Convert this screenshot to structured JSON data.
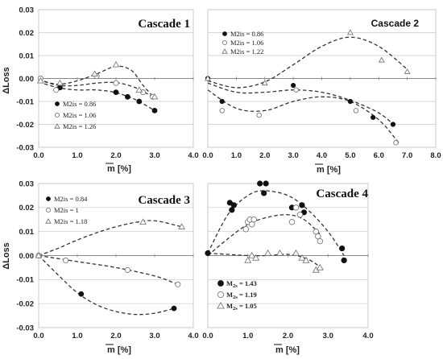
{
  "chart_data": [
    {
      "type": "scatter",
      "title": "Cascade 1",
      "ylabel": "ΔLoss",
      "xlabel": "m̄ [%]",
      "xlim": [
        0.0,
        4.0
      ],
      "ylim": [
        -0.03,
        0.03
      ],
      "xticks": [
        "0.0",
        "1.0",
        "2.0",
        "3.0",
        "4.0"
      ],
      "yticks": [
        "0.03",
        "0.02",
        "0.01",
        "0.00",
        "-0.01",
        "-0.02",
        "-0.03"
      ],
      "grid": "horizontal",
      "legend": "bottom-left",
      "series": [
        {
          "name": "M2is = 0.86",
          "marker": "filled-circle",
          "points": [
            [
              0.05,
              0.0
            ],
            [
              0.55,
              -0.004
            ],
            [
              2.0,
              -0.006
            ],
            [
              2.3,
              -0.008
            ],
            [
              2.6,
              -0.01
            ],
            [
              3.0,
              -0.014
            ]
          ],
          "curve": [
            [
              0.0,
              -0.0015
            ],
            [
              0.5,
              -0.004
            ],
            [
              1.0,
              -0.005
            ],
            [
              1.5,
              -0.005
            ],
            [
              2.0,
              -0.0062
            ],
            [
              2.5,
              -0.0092
            ],
            [
              3.0,
              -0.014
            ]
          ]
        },
        {
          "name": "M2is = 1.06",
          "marker": "open-circle",
          "points": [
            [
              0.05,
              0.0
            ],
            [
              0.45,
              -0.005
            ],
            [
              1.5,
              0.001
            ],
            [
              2.0,
              -0.002
            ],
            [
              2.7,
              -0.006
            ],
            [
              2.95,
              -0.008
            ]
          ],
          "curve": [
            [
              0.0,
              -0.0005
            ],
            [
              0.5,
              -0.003
            ],
            [
              1.0,
              -0.003
            ],
            [
              1.5,
              -0.002
            ],
            [
              2.0,
              -0.0018
            ],
            [
              2.5,
              -0.004
            ],
            [
              3.0,
              -0.0085
            ]
          ]
        },
        {
          "name": "M2is = 1.26",
          "marker": "open-triangle",
          "points": [
            [
              0.05,
              -0.001
            ],
            [
              0.55,
              -0.002
            ],
            [
              1.45,
              0.002
            ],
            [
              2.0,
              0.006
            ],
            [
              2.6,
              -0.005
            ],
            [
              3.0,
              -0.008
            ]
          ],
          "curve": [
            [
              0.0,
              -0.0005
            ],
            [
              0.5,
              -0.0025
            ],
            [
              1.0,
              -0.001
            ],
            [
              1.5,
              0.002
            ],
            [
              2.0,
              0.0053
            ],
            [
              2.4,
              0.0035
            ],
            [
              2.7,
              -0.003
            ],
            [
              3.0,
              -0.0085
            ]
          ]
        }
      ]
    },
    {
      "type": "scatter",
      "title": "Cascade 2",
      "ylabel": "",
      "xlabel": "m̄ [%]",
      "xlim": [
        0.0,
        8.0
      ],
      "ylim": [
        -0.03,
        0.03
      ],
      "xticks": [
        "0.0",
        "1.0",
        "2.0",
        "3.0",
        "4.0",
        "5.0",
        "6.0",
        "7.0",
        "8.0"
      ],
      "yticks": [],
      "grid": "horizontal",
      "legend": "top-left",
      "series": [
        {
          "name": "M2is = 0.86",
          "marker": "filled-circle",
          "points": [
            [
              0.0,
              0.0
            ],
            [
              0.5,
              -0.01
            ],
            [
              3.0,
              -0.003
            ],
            [
              5.0,
              -0.01
            ],
            [
              5.8,
              -0.017
            ],
            [
              6.5,
              -0.02
            ]
          ],
          "curve": [
            [
              0.0,
              -0.002
            ],
            [
              1.0,
              -0.006
            ],
            [
              2.0,
              -0.006
            ],
            [
              3.0,
              -0.005
            ],
            [
              4.0,
              -0.006
            ],
            [
              5.0,
              -0.0095
            ],
            [
              6.0,
              -0.015
            ],
            [
              6.6,
              -0.021
            ]
          ]
        },
        {
          "name": "M2is = 1.06",
          "marker": "open-circle",
          "points": [
            [
              0.5,
              -0.014
            ],
            [
              1.8,
              -0.016
            ],
            [
              3.1,
              -0.005
            ],
            [
              5.2,
              -0.014
            ],
            [
              6.6,
              -0.028
            ]
          ],
          "curve": [
            [
              0.0,
              -0.005
            ],
            [
              1.0,
              -0.013
            ],
            [
              2.0,
              -0.014
            ],
            [
              3.0,
              -0.01
            ],
            [
              4.0,
              -0.008
            ],
            [
              5.0,
              -0.01
            ],
            [
              6.0,
              -0.018
            ],
            [
              6.7,
              -0.028
            ]
          ]
        },
        {
          "name": "M2is = 1.22",
          "marker": "open-triangle",
          "points": [
            [
              0.0,
              0.0
            ],
            [
              2.0,
              -0.002
            ],
            [
              5.0,
              0.02
            ],
            [
              6.1,
              0.008
            ],
            [
              7.0,
              0.003
            ]
          ],
          "curve": [
            [
              0.0,
              -0.001
            ],
            [
              1.0,
              -0.004
            ],
            [
              2.0,
              -0.0015
            ],
            [
              3.0,
              0.006
            ],
            [
              4.0,
              0.014
            ],
            [
              5.0,
              0.018
            ],
            [
              6.0,
              0.014
            ],
            [
              7.0,
              0.004
            ]
          ]
        }
      ]
    },
    {
      "type": "scatter",
      "title": "Cascade 3",
      "ylabel": "ΔLoss",
      "xlabel": "m̄ [%]",
      "xlim": [
        0.0,
        4.0
      ],
      "ylim": [
        -0.03,
        0.03
      ],
      "xticks": [
        "0.0",
        "1.0",
        "2.0",
        "3.0",
        "4.0"
      ],
      "yticks": [
        "0.03",
        "0.02",
        "0.01",
        "0.00",
        "-0.01",
        "-0.02",
        "-0.03"
      ],
      "grid": "horizontal",
      "legend": "top-left",
      "series": [
        {
          "name": "M2is = 0.84",
          "marker": "filled-circle",
          "points": [
            [
              0.0,
              0.0
            ],
            [
              1.1,
              -0.016
            ],
            [
              3.5,
              -0.022
            ]
          ],
          "curve": [
            [
              0.0,
              0.0
            ],
            [
              0.5,
              -0.008
            ],
            [
              1.0,
              -0.0155
            ],
            [
              1.5,
              -0.0205
            ],
            [
              2.0,
              -0.0233
            ],
            [
              2.5,
              -0.0245
            ],
            [
              3.0,
              -0.024
            ],
            [
              3.5,
              -0.022
            ]
          ]
        },
        {
          "name": "M2is = 1",
          "marker": "open-circle",
          "points": [
            [
              0.0,
              0.0
            ],
            [
              0.7,
              -0.002
            ],
            [
              2.3,
              -0.006
            ],
            [
              3.6,
              -0.012
            ]
          ],
          "curve": [
            [
              0.0,
              0.0
            ],
            [
              1.0,
              -0.0025
            ],
            [
              2.0,
              -0.005
            ],
            [
              3.0,
              -0.0085
            ],
            [
              3.6,
              -0.012
            ]
          ]
        },
        {
          "name": "M2is = 1.18",
          "marker": "open-triangle",
          "points": [
            [
              0.0,
              0.0
            ],
            [
              2.7,
              0.014
            ],
            [
              3.7,
              0.012
            ]
          ],
          "curve": [
            [
              0.0,
              0.0
            ],
            [
              0.5,
              0.003
            ],
            [
              1.0,
              0.0065
            ],
            [
              1.5,
              0.0095
            ],
            [
              2.0,
              0.012
            ],
            [
              2.5,
              0.0138
            ],
            [
              3.0,
              0.0145
            ],
            [
              3.7,
              0.012
            ]
          ]
        }
      ]
    },
    {
      "type": "scatter",
      "title": "Cascade 4",
      "ylabel": "",
      "xlabel": "m̄ [%]",
      "xlim": [
        0.0,
        4.0
      ],
      "ylim": [
        -0.03,
        0.03
      ],
      "xticks": [
        "0.0",
        "1.0",
        "2.0",
        "3.0",
        "4.0"
      ],
      "yticks": [],
      "grid": "horizontal",
      "legend": "bottom-left",
      "series": [
        {
          "name": "M2s = 1.43",
          "marker": "filled-circle",
          "points": [
            [
              0.0,
              0.001
            ],
            [
              0.55,
              0.022
            ],
            [
              0.6,
              0.019
            ],
            [
              0.65,
              0.021
            ],
            [
              1.3,
              0.03
            ],
            [
              1.4,
              0.026
            ],
            [
              1.45,
              0.03
            ],
            [
              2.1,
              0.02
            ],
            [
              2.35,
              0.021
            ],
            [
              2.4,
              0.018
            ],
            [
              3.35,
              0.003
            ],
            [
              3.4,
              -0.002
            ]
          ],
          "curve": [
            [
              0.0,
              0.001
            ],
            [
              0.5,
              0.017
            ],
            [
              1.0,
              0.025
            ],
            [
              1.4,
              0.027
            ],
            [
              2.0,
              0.025
            ],
            [
              2.5,
              0.019
            ],
            [
              3.0,
              0.01
            ],
            [
              3.4,
              0.0
            ]
          ]
        },
        {
          "name": "M2s = 1.19",
          "marker": "open-circle",
          "points": [
            [
              0.95,
              0.011
            ],
            [
              1.0,
              0.014
            ],
            [
              1.05,
              0.015
            ],
            [
              1.1,
              0.013
            ],
            [
              1.15,
              0.015
            ],
            [
              2.1,
              0.014
            ],
            [
              2.2,
              0.02
            ],
            [
              2.3,
              0.017
            ],
            [
              2.7,
              0.01
            ],
            [
              2.75,
              0.008
            ],
            [
              2.8,
              0.006
            ]
          ],
          "curve": [
            [
              0.0,
              0.0
            ],
            [
              0.5,
              0.007
            ],
            [
              1.0,
              0.013
            ],
            [
              1.5,
              0.016
            ],
            [
              2.0,
              0.017
            ],
            [
              2.4,
              0.015
            ],
            [
              2.8,
              0.009
            ]
          ]
        },
        {
          "name": "M2s = 1.05",
          "marker": "open-triangle",
          "points": [
            [
              1.0,
              -0.002
            ],
            [
              1.1,
              0.0
            ],
            [
              1.2,
              -0.001
            ],
            [
              1.5,
              0.001
            ],
            [
              1.8,
              0.001
            ],
            [
              2.2,
              0.001
            ],
            [
              2.35,
              -0.001
            ],
            [
              2.45,
              -0.002
            ],
            [
              2.7,
              -0.006
            ],
            [
              2.8,
              -0.005
            ]
          ],
          "curve": [
            [
              0.0,
              0.001
            ],
            [
              0.5,
              0.0005
            ],
            [
              1.0,
              0.0
            ],
            [
              1.5,
              0.0
            ],
            [
              2.0,
              0.0005
            ],
            [
              2.5,
              -0.0015
            ],
            [
              2.9,
              -0.006
            ]
          ]
        }
      ]
    }
  ]
}
